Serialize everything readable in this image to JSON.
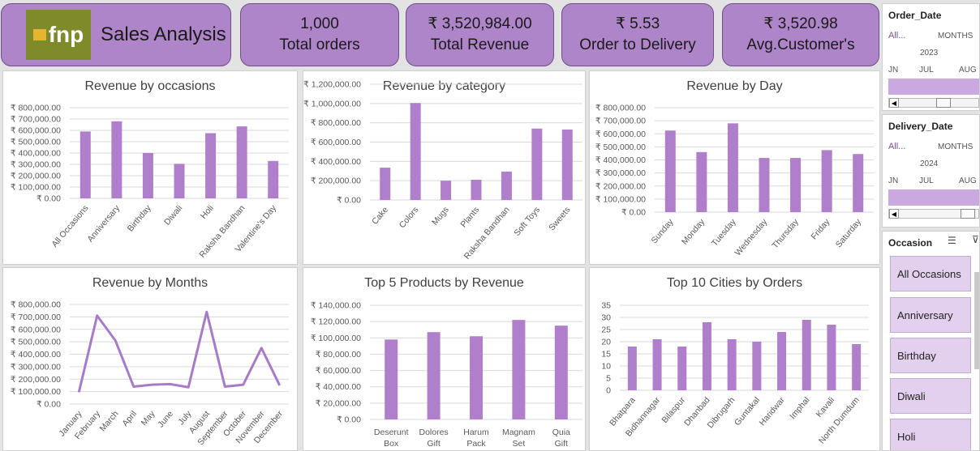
{
  "header": {
    "logo_text": "fnp",
    "title": "Sales Analysis",
    "kpis": [
      {
        "value": "1,000",
        "label": "Total orders"
      },
      {
        "value": "₹ 3,520,984.00",
        "label": "Total Revenue"
      },
      {
        "value": "₹ 5.53",
        "label": "Order to Delivery"
      },
      {
        "value": "₹ 3,520.98",
        "label": "Avg.Customer's"
      }
    ]
  },
  "colors": {
    "accent": "#ae85c8",
    "bar": "#b07fcc",
    "line": "#a87bc9",
    "grid": "#d9d9d9",
    "slicer": "#c9a9df"
  },
  "slicers": {
    "order_date": {
      "title": "Order_Date",
      "all": "All...",
      "unit": "MONTHS",
      "year": "2023",
      "months": [
        "JN",
        "JUL",
        "AUG"
      ]
    },
    "delivery_date": {
      "title": "Delivery_Date",
      "all": "All...",
      "unit": "MONTHS",
      "year": "2024",
      "months": [
        "JN",
        "JUL",
        "AUG"
      ]
    },
    "occasion": {
      "title": "Occasion",
      "items": [
        "All Occasions",
        "Anniversary",
        "Birthday",
        "Diwali",
        "Holi"
      ]
    }
  },
  "chart_data": [
    {
      "id": "occasions",
      "type": "bar",
      "title": "Revenue by occasions",
      "categories": [
        "All Occasions",
        "Anniversary",
        "Birthday",
        "Diwali",
        "Holi",
        "Raksha Bandhan",
        "Valentine's Day"
      ],
      "values": [
        590000,
        680000,
        400000,
        305000,
        575000,
        635000,
        330000
      ],
      "ylim": [
        0,
        800000
      ],
      "ticks": [
        "₹ 0.00",
        "₹ 100,000.00",
        "₹ 200,000.00",
        "₹ 300,000.00",
        "₹ 400,000.00",
        "₹ 500,000.00",
        "₹ 600,000.00",
        "₹ 700,000.00",
        "₹ 800,000.00"
      ]
    },
    {
      "id": "category",
      "type": "bar",
      "title": "Revenue by category",
      "categories": [
        "Cake",
        "Colors",
        "Mugs",
        "Plants",
        "Raksha Bandhan",
        "Soft Toys",
        "Sweets"
      ],
      "values": [
        335000,
        1005000,
        200000,
        210000,
        295000,
        740000,
        730000
      ],
      "ylim": [
        0,
        1200000
      ],
      "ticks": [
        "₹ 0.00",
        "₹ 200,000.00",
        "₹ 400,000.00",
        "₹ 600,000.00",
        "₹ 800,000.00",
        "₹ 1,000,000.00",
        "₹ 1,200,000.00"
      ]
    },
    {
      "id": "day",
      "type": "bar",
      "title": "Revenue by Day",
      "categories": [
        "Sunday",
        "Monday",
        "Tuesday",
        "Wednesday",
        "Thursday",
        "Friday",
        "Saturday"
      ],
      "values": [
        625000,
        460000,
        680000,
        415000,
        415000,
        475000,
        445000
      ],
      "ylim": [
        0,
        800000
      ],
      "ticks": [
        "₹ 0.00",
        "₹ 100,000.00",
        "₹ 200,000.00",
        "₹ 300,000.00",
        "₹ 400,000.00",
        "₹ 500,000.00",
        "₹ 600,000.00",
        "₹ 700,000.00",
        "₹ 800,000.00"
      ]
    },
    {
      "id": "months",
      "type": "line",
      "title": "Revenue by Months",
      "categories": [
        "January",
        "February",
        "March",
        "April",
        "May",
        "June",
        "July",
        "August",
        "September",
        "October",
        "November",
        "December"
      ],
      "values": [
        95000,
        710000,
        510000,
        140000,
        155000,
        160000,
        135000,
        740000,
        140000,
        155000,
        450000,
        150000
      ],
      "ylim": [
        0,
        800000
      ],
      "ticks": [
        "₹ 0.00",
        "₹ 100,000.00",
        "₹ 200,000.00",
        "₹ 300,000.00",
        "₹ 400,000.00",
        "₹ 500,000.00",
        "₹ 600,000.00",
        "₹ 700,000.00",
        "₹ 800,000.00"
      ]
    },
    {
      "id": "products",
      "type": "bar",
      "title": "Top 5 Products by Revenue",
      "categories": [
        "Deserunt Box",
        "Dolores Gift",
        "Harum Pack",
        "Magnam Set",
        "Quia Gift"
      ],
      "values": [
        98000,
        107000,
        102000,
        122000,
        115000
      ],
      "ylim": [
        0,
        140000
      ],
      "ticks": [
        "₹ 0.00",
        "₹ 20,000.00",
        "₹ 40,000.00",
        "₹ 60,000.00",
        "₹ 80,000.00",
        "₹ 100,000.00",
        "₹ 120,000.00",
        "₹ 140,000.00"
      ]
    },
    {
      "id": "cities",
      "type": "bar",
      "title": "Top 10 Cities by Orders",
      "categories": [
        "Bhatpara",
        "Bidhannagar",
        "Bilaspur",
        "Dhanbad",
        "Dibrugarh",
        "Guntakal",
        "Haridwar",
        "Imphal",
        "Kavali",
        "North Dumdum"
      ],
      "values": [
        18,
        21,
        18,
        28,
        21,
        20,
        24,
        29,
        27,
        19
      ],
      "ylim": [
        0,
        35
      ],
      "ticks": [
        "0",
        "5",
        "10",
        "15",
        "20",
        "25",
        "30",
        "35"
      ]
    }
  ]
}
